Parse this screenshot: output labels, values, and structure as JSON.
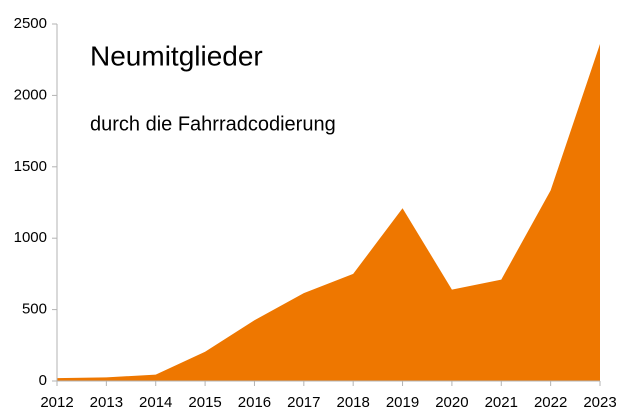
{
  "chart_data": {
    "type": "area",
    "title": "Neumitglieder",
    "subtitle": "durch die Fahrradcodierung",
    "x": [
      2012,
      2013,
      2014,
      2015,
      2016,
      2017,
      2018,
      2019,
      2020,
      2021,
      2022,
      2023
    ],
    "values": [
      20,
      25,
      45,
      205,
      425,
      615,
      750,
      1210,
      640,
      710,
      1335,
      2360
    ],
    "color": "#ee7700",
    "xlim": [
      2012,
      2023
    ],
    "xticks": [
      2012,
      2013,
      2014,
      2015,
      2016,
      2017,
      2018,
      2019,
      2020,
      2021,
      2022,
      2023
    ],
    "ylim": [
      0,
      2500
    ],
    "yticks": [
      0,
      500,
      1000,
      1500,
      2000,
      2500
    ],
    "grid": false
  }
}
